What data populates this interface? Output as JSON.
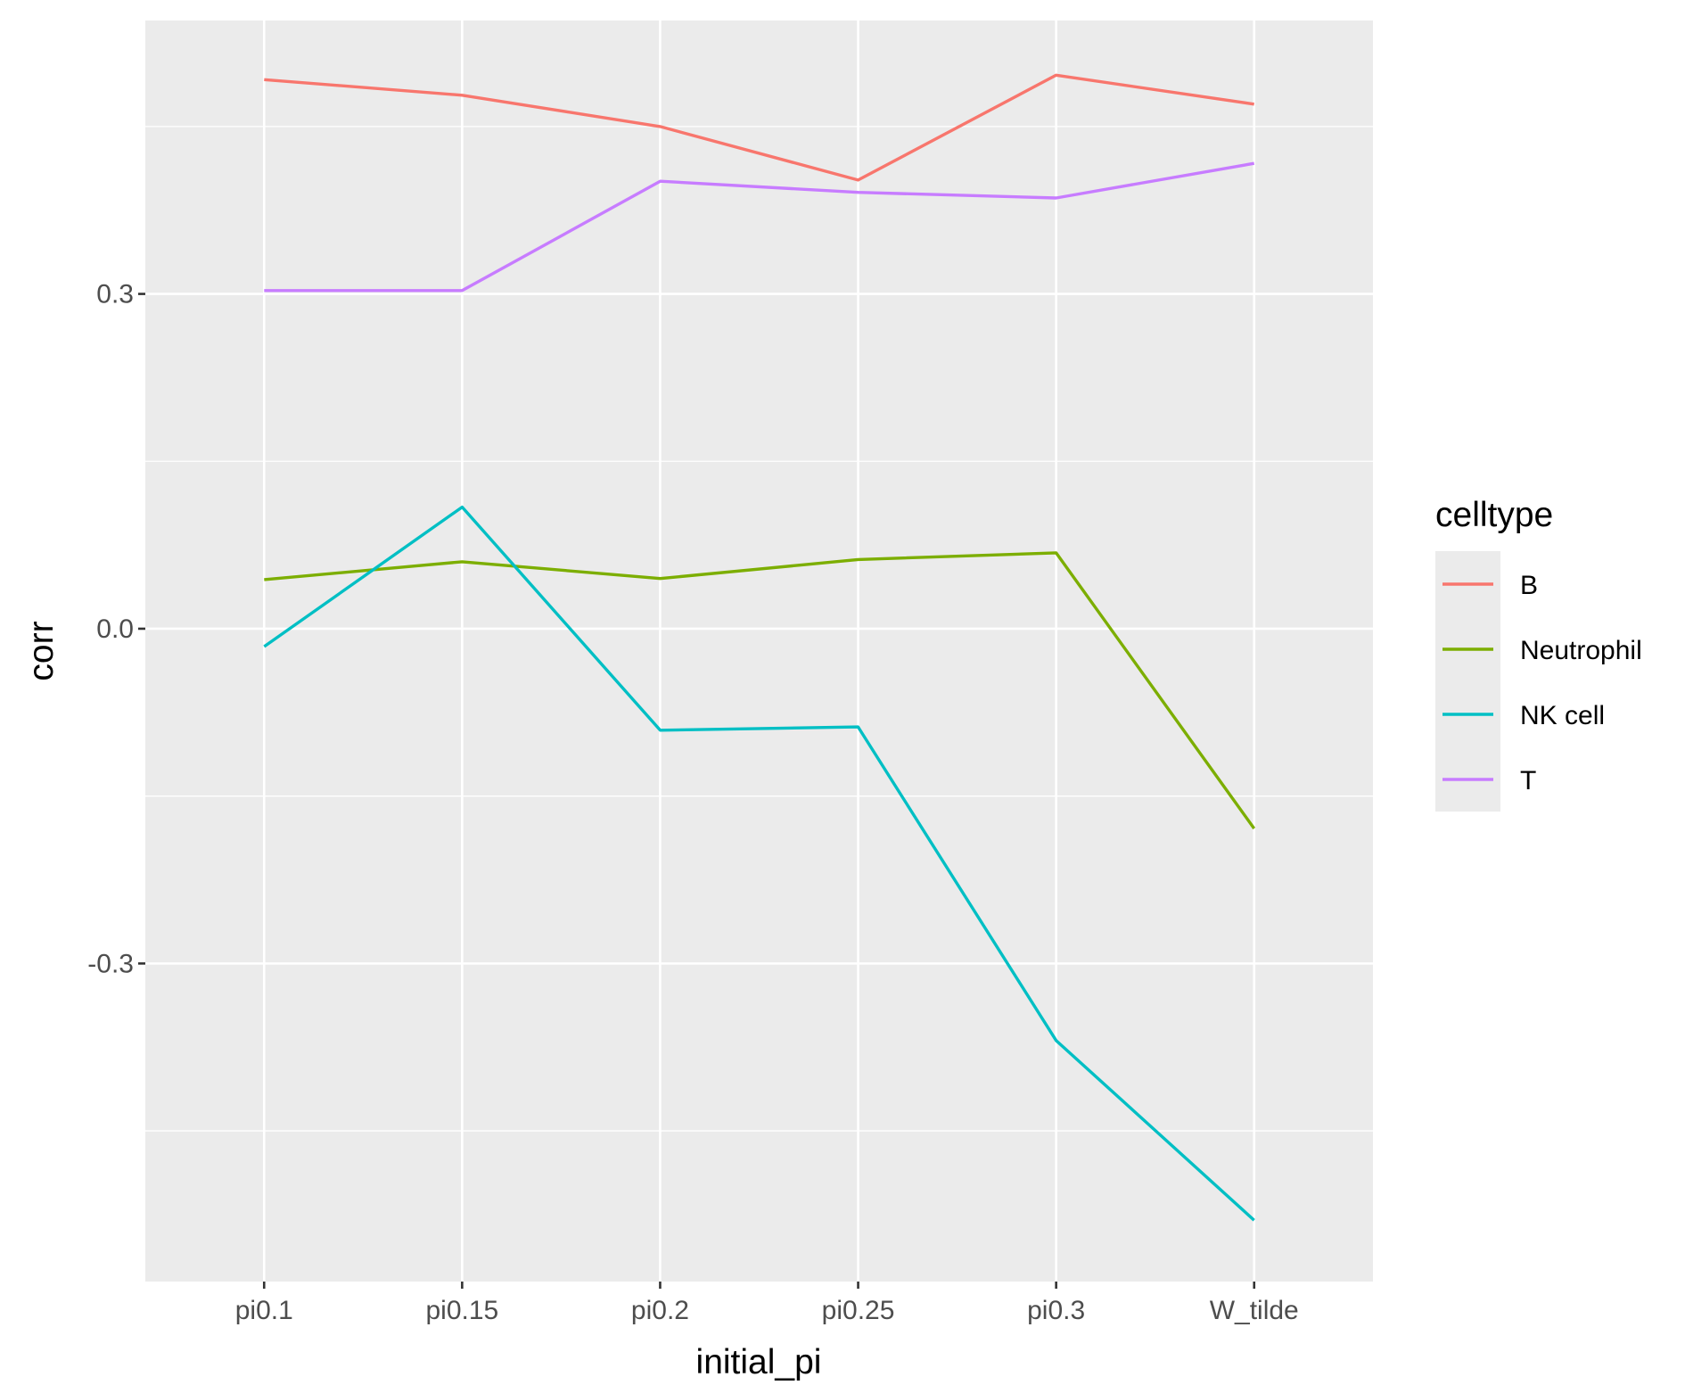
{
  "chart_data": {
    "type": "line",
    "xlabel": "initial_pi",
    "ylabel": "corr",
    "categories": [
      "pi0.1",
      "pi0.15",
      "pi0.2",
      "pi0.25",
      "pi0.3",
      "W_tilde"
    ],
    "y_ticks": [
      -0.3,
      0.0,
      0.3
    ],
    "y_tick_labels": [
      "-0.3",
      "0.0",
      "0.3"
    ],
    "ylim": [
      -0.585,
      0.545
    ],
    "grid": true,
    "legend": {
      "title": "celltype",
      "placement": "right"
    },
    "series": [
      {
        "name": "B",
        "color": "#F8766D",
        "values": [
          0.492,
          0.478,
          0.45,
          0.402,
          0.496,
          0.47
        ]
      },
      {
        "name": "Neutrophil",
        "color": "#7CAE00",
        "values": [
          0.044,
          0.06,
          0.045,
          0.062,
          0.068,
          -0.179
        ]
      },
      {
        "name": "NK cell",
        "color": "#00BFC4",
        "values": [
          -0.016,
          0.109,
          -0.091,
          -0.088,
          -0.369,
          -0.53
        ]
      },
      {
        "name": "T",
        "color": "#C77CFF",
        "values": [
          0.303,
          0.303,
          0.401,
          0.391,
          0.386,
          0.417
        ]
      }
    ]
  }
}
